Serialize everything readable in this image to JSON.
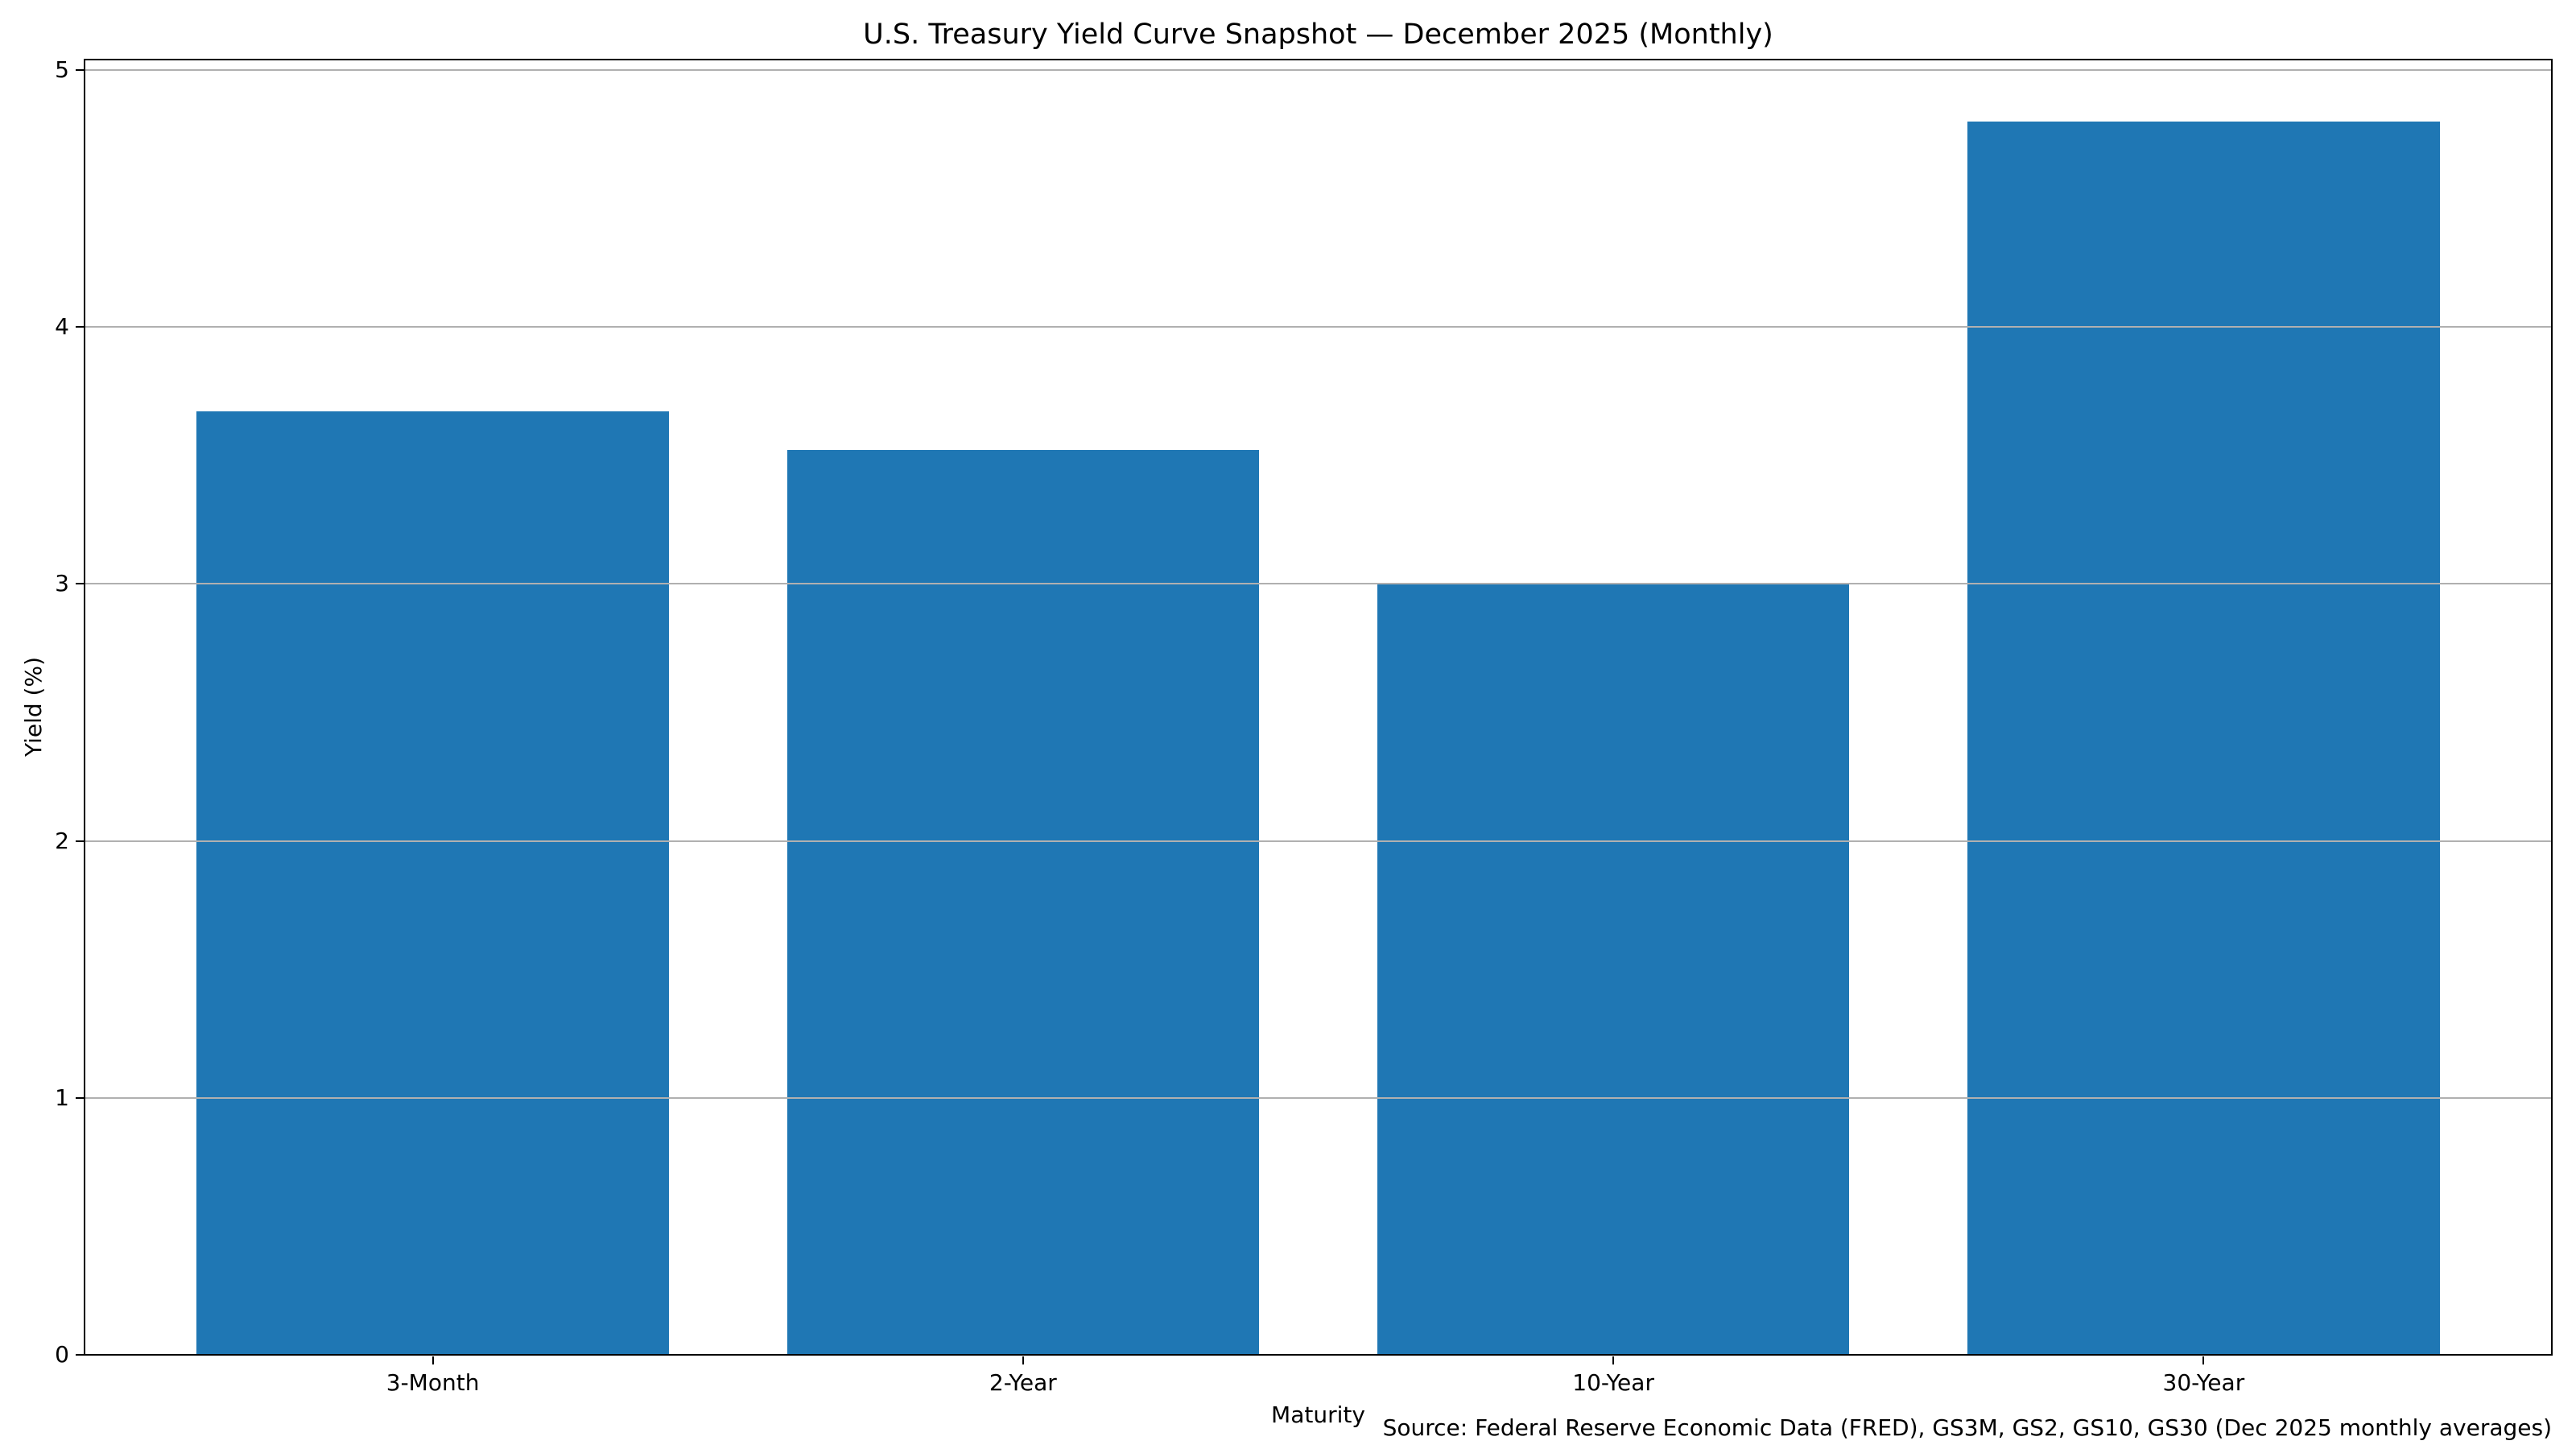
{
  "chart_data": {
    "type": "bar",
    "title": "U.S. Treasury Yield Curve Snapshot — December 2025 (Monthly)",
    "xlabel": "Maturity",
    "ylabel": "Yield (%)",
    "categories": [
      "3-Month",
      "2-Year",
      "10-Year",
      "30-Year"
    ],
    "values": [
      3.67,
      3.52,
      3.0,
      4.8
    ],
    "ylim": [
      0,
      5.04
    ],
    "yticks": [
      0,
      1,
      2,
      3,
      4,
      5
    ],
    "ytick_labels": [
      "0",
      "1",
      "2",
      "3",
      "4",
      "5"
    ],
    "bar_color": "#1f77b4",
    "grid": true,
    "grid_color": "#b0b0b0",
    "spine_color": "#000000",
    "legend": "none",
    "source_note": "Source: Federal Reserve Economic Data (FRED), GS3M, GS2, GS10, GS30 (Dec 2025 monthly averages)"
  }
}
